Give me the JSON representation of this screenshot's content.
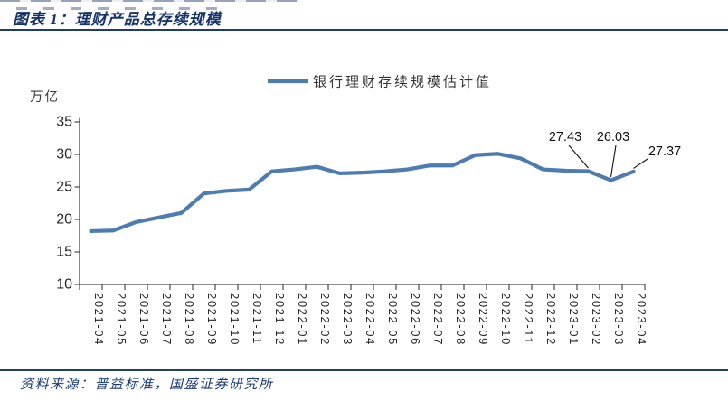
{
  "figure": {
    "title": "图表 1：理财产品总存续规模",
    "source": "资料来源：普益标准，国盛证券研究所"
  },
  "colors": {
    "header_navy": "#1e3c6f",
    "title_navy": "#14336b",
    "line_blue": "#4e7cb0",
    "axis_gray": "#4a4a4a",
    "text_dark": "#262626"
  },
  "chart_data": {
    "type": "line",
    "title": "",
    "unit_label": "万亿",
    "legend_position": "top-center",
    "grid": false,
    "ylim": [
      10,
      35
    ],
    "yticks": [
      35,
      30,
      25,
      20,
      15,
      10
    ],
    "line_color": "#4e7cb0",
    "x": [
      "2021-04",
      "2021-05",
      "2021-06",
      "2021-07",
      "2021-08",
      "2021-09",
      "2021-10",
      "2021-11",
      "2021-12",
      "2022-01",
      "2022-02",
      "2022-03",
      "2022-04",
      "2022-05",
      "2022-06",
      "2022-07",
      "2022-08",
      "2022-09",
      "2022-10",
      "2022-11",
      "2022-12",
      "2023-01",
      "2023-02",
      "2023-03",
      "2023-04"
    ],
    "series": [
      {
        "name": "银行理财存续规模估计值",
        "values": [
          18.2,
          18.3,
          19.6,
          20.3,
          21.0,
          24.0,
          24.4,
          24.6,
          27.4,
          27.7,
          28.1,
          27.1,
          27.2,
          27.4,
          27.7,
          28.3,
          28.3,
          29.9,
          30.1,
          29.4,
          27.7,
          27.5,
          27.43,
          26.03,
          27.37
        ]
      }
    ],
    "annotations": [
      {
        "x": "2023-02",
        "value": 27.43,
        "label": "27.43"
      },
      {
        "x": "2023-03",
        "value": 26.03,
        "label": "26.03"
      },
      {
        "x": "2023-04",
        "value": 27.37,
        "label": "27.37"
      }
    ]
  }
}
